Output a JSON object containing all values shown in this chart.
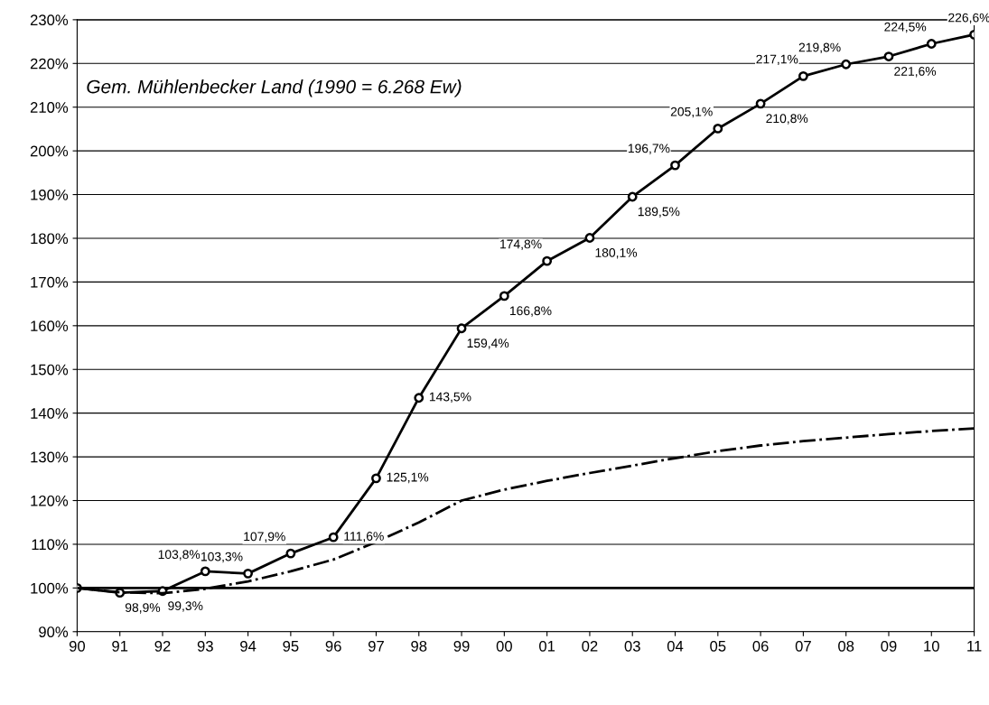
{
  "chart_data": {
    "type": "line",
    "categories": [
      "90",
      "91",
      "92",
      "93",
      "94",
      "95",
      "96",
      "97",
      "98",
      "99",
      "00",
      "01",
      "02",
      "03",
      "04",
      "05",
      "06",
      "07",
      "08",
      "09",
      "10",
      "11"
    ],
    "ylim": [
      90,
      230
    ],
    "yticks": [
      {
        "value": 90,
        "label": "90%"
      },
      {
        "value": 100,
        "label": "100%"
      },
      {
        "value": 110,
        "label": "110%"
      },
      {
        "value": 120,
        "label": "120%"
      },
      {
        "value": 130,
        "label": "130%"
      },
      {
        "value": 140,
        "label": "140%"
      },
      {
        "value": 150,
        "label": "150%"
      },
      {
        "value": 160,
        "label": "160%"
      },
      {
        "value": 170,
        "label": "170%"
      },
      {
        "value": 180,
        "label": "180%"
      },
      {
        "value": 190,
        "label": "190%"
      },
      {
        "value": 200,
        "label": "200%"
      },
      {
        "value": 210,
        "label": "210%"
      },
      {
        "value": 220,
        "label": "220%"
      },
      {
        "value": 230,
        "label": "230%"
      }
    ],
    "grid": "y",
    "legend": false,
    "ref_lines": [
      {
        "axis": "y",
        "value": 100,
        "label": null,
        "color": "#000000"
      }
    ],
    "annotations": [
      "Gem. Mühlenbecker Land (1990 = 6.268 Ew)"
    ],
    "series": [
      {
        "color": "#000000",
        "marker": "circle",
        "line_style": "solid",
        "values": [
          100,
          98.9,
          99.3,
          103.8,
          103.3,
          107.9,
          111.6,
          125.1,
          143.5,
          159.4,
          166.8,
          174.8,
          180.1,
          189.5,
          196.7,
          205.1,
          210.8,
          217.1,
          219.8,
          221.6,
          224.5,
          226.6
        ],
        "value_labels": [
          null,
          "98,9%",
          "99,3%",
          "103,8%",
          "103,3%",
          "107,9%",
          "111,6%",
          "125,1%",
          "143,5%",
          "159,4%",
          "166,8%",
          "174,8%",
          "180,1%",
          "189,5%",
          "196,7%",
          "205,1%",
          "210,8%",
          "217,1%",
          "219,8%",
          "221,6%",
          "224,5%",
          "226,6%"
        ]
      },
      {
        "color": "#000000",
        "marker": "none",
        "line_style": "dashdot",
        "values": [
          100,
          99.0,
          98.8,
          99.8,
          101.5,
          103.8,
          106.5,
          110.5,
          115,
          120,
          122.5,
          124.5,
          126.3,
          128,
          129.7,
          131.3,
          132.6,
          133.6,
          134.4,
          135.2,
          135.9,
          136.5
        ]
      }
    ]
  }
}
